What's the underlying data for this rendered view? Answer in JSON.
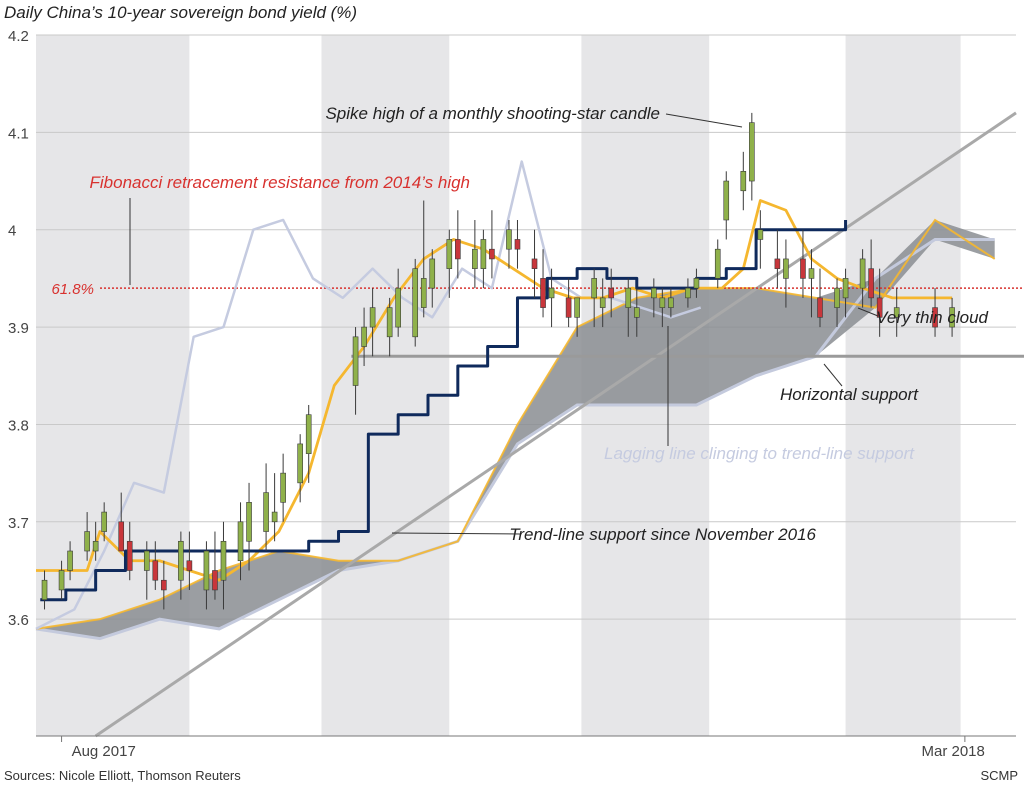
{
  "title": "Daily China’s 10-year sovereign bond yield (%)",
  "sources": "Sources: Nicole Elliott, Thomson Reuters",
  "credit": "SCMP",
  "colors": {
    "candle_up": "#8fb14a",
    "candle_down": "#c8363b",
    "conversion_line": "#f5b72f",
    "base_line": "#0f2a5c",
    "lagging_line": "#c5cbe0",
    "cloud_fill": "#8a8d92",
    "cloud_span_b": "#c4cadd",
    "fib_line": "#d8322f",
    "band": "#e6e6e8",
    "trend_line": "#a9a9a9",
    "horizontal_support": "#9a9a9a"
  },
  "chart_data": {
    "type": "candlestick",
    "title": "Daily China’s 10-year sovereign bond yield (%)",
    "ylim": [
      3.48,
      4.2
    ],
    "yticks": [
      "3.6",
      "3.7",
      "3.8",
      "3.9",
      "4",
      "4.1",
      "4.2"
    ],
    "x_labels": [
      "Aug 2017",
      "Mar 2018"
    ],
    "x_range": [
      "2017-07-26",
      "2018-03-13"
    ],
    "month_bands": [
      {
        "from": "2017-07-26",
        "to": "2017-08-31"
      },
      {
        "from": "2017-10-01",
        "to": "2017-10-31"
      },
      {
        "from": "2017-12-01",
        "to": "2017-12-31"
      },
      {
        "from": "2018-02-01",
        "to": "2018-02-28"
      }
    ],
    "fibonacci": {
      "label": "61.8%",
      "value": 3.94
    },
    "horizontal_support": 3.87,
    "trend_line": {
      "x": [
        "2017-08-09",
        "2018-03-13"
      ],
      "y": [
        3.48,
        4.12
      ]
    },
    "annotations": {
      "spike_high": "Spike high of a monthly shooting-star candle",
      "fibonacci": "Fibonacci retracement resistance from 2014’s high",
      "thin_cloud": "Very thin cloud",
      "horizontal_support": "Horizontal support",
      "lagging_line": "Lagging line clinging to trend-line support",
      "trend_line": "Trend-line support since November 2016"
    },
    "series": [
      {
        "kind": "ohlc",
        "x": [
          "2017-07-28",
          "2017-08-01",
          "2017-08-03",
          "2017-08-07",
          "2017-08-09",
          "2017-08-11",
          "2017-08-15",
          "2017-08-17",
          "2017-08-21",
          "2017-08-23",
          "2017-08-25",
          "2017-08-29",
          "2017-08-31",
          "2017-09-04",
          "2017-09-06",
          "2017-09-08",
          "2017-09-12",
          "2017-09-14",
          "2017-09-18",
          "2017-09-20",
          "2017-09-22",
          "2017-09-26",
          "2017-09-28",
          "2017-10-09",
          "2017-10-11",
          "2017-10-13",
          "2017-10-17",
          "2017-10-19",
          "2017-10-23",
          "2017-10-25",
          "2017-10-27",
          "2017-10-31",
          "2017-11-02",
          "2017-11-06",
          "2017-11-08",
          "2017-11-10",
          "2017-11-14",
          "2017-11-16",
          "2017-11-20",
          "2017-11-22",
          "2017-11-24",
          "2017-11-28",
          "2017-11-30",
          "2017-12-04",
          "2017-12-06",
          "2017-12-08",
          "2017-12-12",
          "2017-12-14",
          "2017-12-18",
          "2017-12-20",
          "2017-12-22",
          "2017-12-26",
          "2017-12-28",
          "2018-01-02",
          "2018-01-04",
          "2018-01-08",
          "2018-01-10",
          "2018-01-12",
          "2018-01-16",
          "2018-01-18",
          "2018-01-22",
          "2018-01-24",
          "2018-01-26",
          "2018-01-30",
          "2018-02-01",
          "2018-02-05",
          "2018-02-07",
          "2018-02-09",
          "2018-02-13",
          "2018-02-22",
          "2018-02-26"
        ],
        "open": [
          3.62,
          3.63,
          3.65,
          3.67,
          3.67,
          3.69,
          3.7,
          3.68,
          3.65,
          3.66,
          3.64,
          3.64,
          3.66,
          3.63,
          3.65,
          3.64,
          3.66,
          3.68,
          3.69,
          3.7,
          3.72,
          3.74,
          3.77,
          3.84,
          3.88,
          3.9,
          3.89,
          3.9,
          3.89,
          3.92,
          3.94,
          3.96,
          3.99,
          3.96,
          3.96,
          3.98,
          3.98,
          3.99,
          3.97,
          3.95,
          3.93,
          3.93,
          3.91,
          3.93,
          3.92,
          3.94,
          3.92,
          3.91,
          3.93,
          3.92,
          3.92,
          3.93,
          3.94,
          3.95,
          4.01,
          4.04,
          4.05,
          3.99,
          3.97,
          3.95,
          3.97,
          3.95,
          3.93,
          3.92,
          3.93,
          3.94,
          3.96,
          3.93,
          3.91,
          3.92,
          3.9
        ],
        "high": [
          3.65,
          3.66,
          3.68,
          3.71,
          3.7,
          3.72,
          3.73,
          3.7,
          3.68,
          3.68,
          3.66,
          3.69,
          3.69,
          3.68,
          3.69,
          3.7,
          3.72,
          3.74,
          3.76,
          3.75,
          3.77,
          3.79,
          3.82,
          3.9,
          3.92,
          3.94,
          3.93,
          3.96,
          3.97,
          4.03,
          3.98,
          4.0,
          4.02,
          4.01,
          4.0,
          4.02,
          4.01,
          4.01,
          4.0,
          3.98,
          3.96,
          3.95,
          3.93,
          3.96,
          3.95,
          3.96,
          3.95,
          3.94,
          3.95,
          3.94,
          3.94,
          3.95,
          3.96,
          3.99,
          4.06,
          4.08,
          4.12,
          4.02,
          4.0,
          3.99,
          4.0,
          3.98,
          3.96,
          3.95,
          3.96,
          3.98,
          3.99,
          3.96,
          3.94,
          3.94,
          3.93
        ],
        "low": [
          3.61,
          3.62,
          3.64,
          3.66,
          3.66,
          3.68,
          3.67,
          3.64,
          3.62,
          3.63,
          3.61,
          3.62,
          3.63,
          3.61,
          3.62,
          3.61,
          3.64,
          3.65,
          3.67,
          3.68,
          3.7,
          3.72,
          3.74,
          3.81,
          3.86,
          3.87,
          3.87,
          3.89,
          3.88,
          3.91,
          3.92,
          3.93,
          3.95,
          3.94,
          3.94,
          3.95,
          3.96,
          3.96,
          3.93,
          3.91,
          3.9,
          3.9,
          3.89,
          3.9,
          3.9,
          3.91,
          3.89,
          3.89,
          3.91,
          3.9,
          3.91,
          3.92,
          3.93,
          3.94,
          3.99,
          4.02,
          4.03,
          3.96,
          3.94,
          3.92,
          3.93,
          3.91,
          3.9,
          3.9,
          3.91,
          3.92,
          3.92,
          3.89,
          3.89,
          3.89,
          3.89
        ],
        "close": [
          3.64,
          3.65,
          3.67,
          3.69,
          3.68,
          3.71,
          3.67,
          3.65,
          3.67,
          3.64,
          3.63,
          3.68,
          3.65,
          3.67,
          3.63,
          3.68,
          3.7,
          3.72,
          3.73,
          3.71,
          3.75,
          3.78,
          3.81,
          3.89,
          3.9,
          3.92,
          3.92,
          3.94,
          3.96,
          3.95,
          3.97,
          3.99,
          3.97,
          3.98,
          3.99,
          3.97,
          4.0,
          3.98,
          3.96,
          3.92,
          3.94,
          3.91,
          3.93,
          3.95,
          3.93,
          3.93,
          3.94,
          3.92,
          3.94,
          3.93,
          3.93,
          3.94,
          3.95,
          3.98,
          4.05,
          4.06,
          4.11,
          4.0,
          3.96,
          3.97,
          3.95,
          3.96,
          3.91,
          3.94,
          3.95,
          3.97,
          3.93,
          3.91,
          3.92,
          3.9,
          3.92
        ]
      },
      {
        "kind": "line",
        "role": "conversion",
        "x": [
          "2017-07-26",
          "2017-08-07",
          "2017-08-10",
          "2017-08-17",
          "2017-08-24",
          "2017-08-31",
          "2017-09-07",
          "2017-09-14",
          "2017-09-21",
          "2017-09-28",
          "2017-10-04",
          "2017-10-11",
          "2017-10-18",
          "2017-10-25",
          "2017-11-01",
          "2017-11-08",
          "2017-11-15",
          "2017-11-22",
          "2017-11-29",
          "2017-12-06",
          "2017-12-13",
          "2017-12-20",
          "2017-12-27",
          "2018-01-03",
          "2018-01-08",
          "2018-01-12",
          "2018-01-18",
          "2018-01-24",
          "2018-01-30",
          "2018-02-05",
          "2018-02-12",
          "2018-02-20",
          "2018-02-26"
        ],
        "y": [
          3.65,
          3.65,
          3.69,
          3.66,
          3.66,
          3.65,
          3.64,
          3.66,
          3.69,
          3.75,
          3.84,
          3.88,
          3.93,
          3.97,
          3.99,
          3.98,
          3.96,
          3.94,
          3.93,
          3.93,
          3.94,
          3.93,
          3.94,
          3.94,
          3.96,
          4.03,
          4.02,
          3.97,
          3.95,
          3.94,
          3.93,
          3.93,
          3.93
        ]
      },
      {
        "kind": "line",
        "role": "base",
        "x": [
          "2017-07-27",
          "2017-08-02",
          "2017-08-09",
          "2017-08-16",
          "2017-08-23",
          "2017-08-31",
          "2017-09-07",
          "2017-09-14",
          "2017-09-21",
          "2017-09-28",
          "2017-10-05",
          "2017-10-12",
          "2017-10-19",
          "2017-10-26",
          "2017-11-02",
          "2017-11-09",
          "2017-11-16",
          "2017-11-23",
          "2017-11-30",
          "2017-12-07",
          "2017-12-14",
          "2017-12-21",
          "2017-12-28",
          "2018-01-04",
          "2018-01-11",
          "2018-01-18",
          "2018-01-25",
          "2018-02-01"
        ],
        "y": [
          3.62,
          3.63,
          3.65,
          3.67,
          3.67,
          3.67,
          3.67,
          3.67,
          3.67,
          3.68,
          3.69,
          3.79,
          3.81,
          3.83,
          3.86,
          3.88,
          3.93,
          3.95,
          3.96,
          3.95,
          3.94,
          3.94,
          3.95,
          3.96,
          4.0,
          4.0,
          4.0,
          4.01
        ]
      },
      {
        "kind": "line",
        "role": "lagging",
        "x": [
          "2017-07-26",
          "2017-08-04",
          "2017-08-11",
          "2017-08-18",
          "2017-08-25",
          "2017-09-01",
          "2017-09-08",
          "2017-09-15",
          "2017-09-22",
          "2017-09-29",
          "2017-10-06",
          "2017-10-13",
          "2017-10-20",
          "2017-10-27",
          "2017-11-03",
          "2017-11-10",
          "2017-11-17",
          "2017-11-24",
          "2017-12-01",
          "2017-12-08",
          "2017-12-15",
          "2017-12-22",
          "2017-12-29"
        ],
        "y": [
          3.59,
          3.61,
          3.67,
          3.74,
          3.73,
          3.89,
          3.9,
          4.0,
          4.01,
          3.95,
          3.93,
          3.96,
          3.93,
          3.91,
          3.96,
          3.94,
          4.07,
          3.95,
          3.93,
          3.93,
          3.92,
          3.91,
          3.92
        ]
      },
      {
        "kind": "area",
        "role": "cloud",
        "x": [
          "2017-07-26",
          "2017-08-10",
          "2017-08-24",
          "2017-09-07",
          "2017-09-21",
          "2017-10-05",
          "2017-10-19",
          "2017-11-02",
          "2017-11-16",
          "2017-11-30",
          "2017-12-14",
          "2017-12-28",
          "2018-01-11",
          "2018-01-25",
          "2018-02-08",
          "2018-02-22",
          "2018-03-08"
        ],
        "span_a": [
          3.59,
          3.6,
          3.62,
          3.65,
          3.67,
          3.66,
          3.66,
          3.68,
          3.8,
          3.9,
          3.93,
          3.94,
          3.94,
          3.93,
          3.92,
          4.01,
          3.97
        ],
        "span_b": [
          3.59,
          3.58,
          3.6,
          3.59,
          3.62,
          3.65,
          3.66,
          3.68,
          3.78,
          3.82,
          3.82,
          3.82,
          3.85,
          3.87,
          3.95,
          3.99,
          3.99
        ]
      }
    ]
  }
}
